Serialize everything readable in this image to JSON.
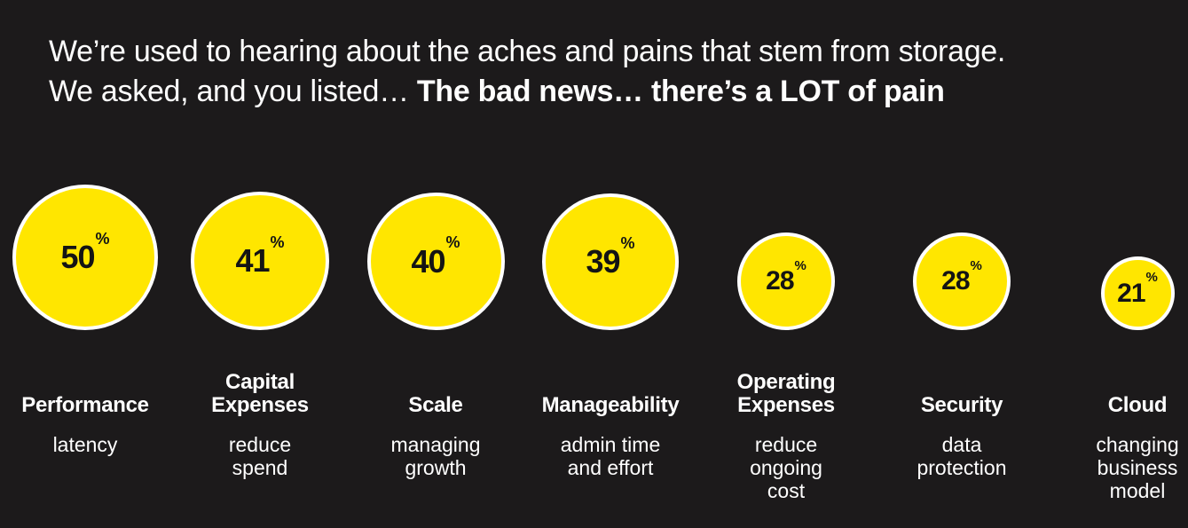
{
  "headline": {
    "line1": "We’re used to hearing about the aches and pains that stem from storage.",
    "line2_regular": "We asked, and you listed… ",
    "line2_bold": "The bad news… there’s a LOT of pain"
  },
  "colors": {
    "background": "#1c1a1b",
    "bubble_fill": "#ffe600",
    "bubble_border": "#ffffff",
    "bubble_text": "#141414",
    "label_text": "#ffffff"
  },
  "chart_data": {
    "type": "bubble",
    "unit": "%",
    "categories": [
      "Performance",
      "Capital Expenses",
      "Scale",
      "Manageability",
      "Operating Expenses",
      "Security",
      "Cloud"
    ],
    "values": [
      50,
      41,
      40,
      39,
      28,
      28,
      21
    ],
    "items": [
      {
        "title": "Performance",
        "subtitle": "latency",
        "value": 50,
        "value_label": "50",
        "unit": "%"
      },
      {
        "title": "Capital\nExpenses",
        "subtitle": "reduce\nspend",
        "value": 41,
        "value_label": "41",
        "unit": "%"
      },
      {
        "title": "Scale",
        "subtitle": "managing\ngrowth",
        "value": 40,
        "value_label": "40",
        "unit": "%"
      },
      {
        "title": "Manageability",
        "subtitle": "admin time\nand effort",
        "value": 39,
        "value_label": "39",
        "unit": "%"
      },
      {
        "title": "Operating\nExpenses",
        "subtitle": "reduce\nongoing\ncost",
        "value": 28,
        "value_label": "28",
        "unit": "%"
      },
      {
        "title": "Security",
        "subtitle": "data\nprotection",
        "value": 28,
        "value_label": "28",
        "unit": "%"
      },
      {
        "title": "Cloud",
        "subtitle": "changing\nbusiness\nmodel",
        "value": 21,
        "value_label": "21",
        "unit": "%"
      }
    ]
  }
}
